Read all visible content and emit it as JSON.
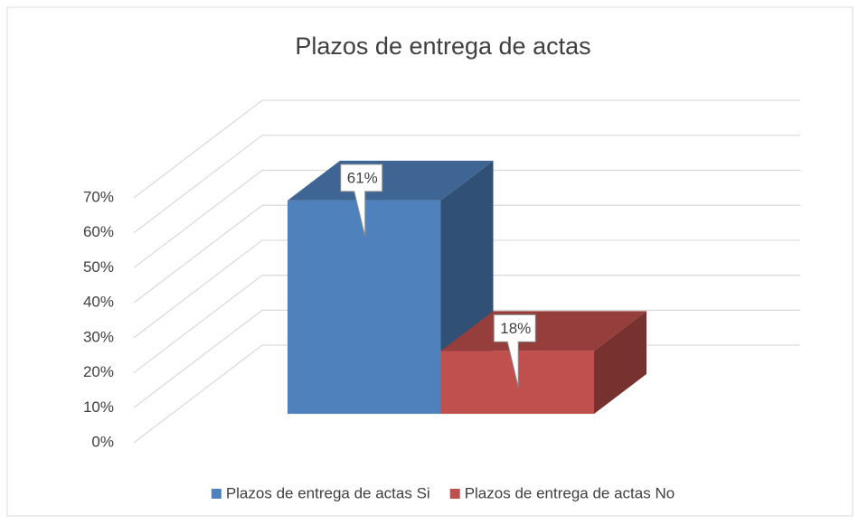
{
  "chart_data": {
    "type": "bar3d",
    "title": "Plazos de entrega de actas",
    "series": [
      {
        "name": "Plazos de entrega de actas Si",
        "color": "#4f81bd",
        "values": [
          61
        ],
        "value_labels": [
          "61%"
        ]
      },
      {
        "name": "Plazos de entrega de actas No",
        "color": "#c0504d",
        "values": [
          18
        ],
        "value_labels": [
          "18%"
        ]
      }
    ],
    "ylim": [
      0,
      70
    ],
    "yticks": [
      {
        "value": 0,
        "label": "0%"
      },
      {
        "value": 10,
        "label": "10%"
      },
      {
        "value": 20,
        "label": "20%"
      },
      {
        "value": 30,
        "label": "30%"
      },
      {
        "value": 40,
        "label": "40%"
      },
      {
        "value": 50,
        "label": "50%"
      },
      {
        "value": 60,
        "label": "60%"
      },
      {
        "value": 70,
        "label": "70%"
      }
    ],
    "grid": true,
    "legend": "bottom"
  }
}
